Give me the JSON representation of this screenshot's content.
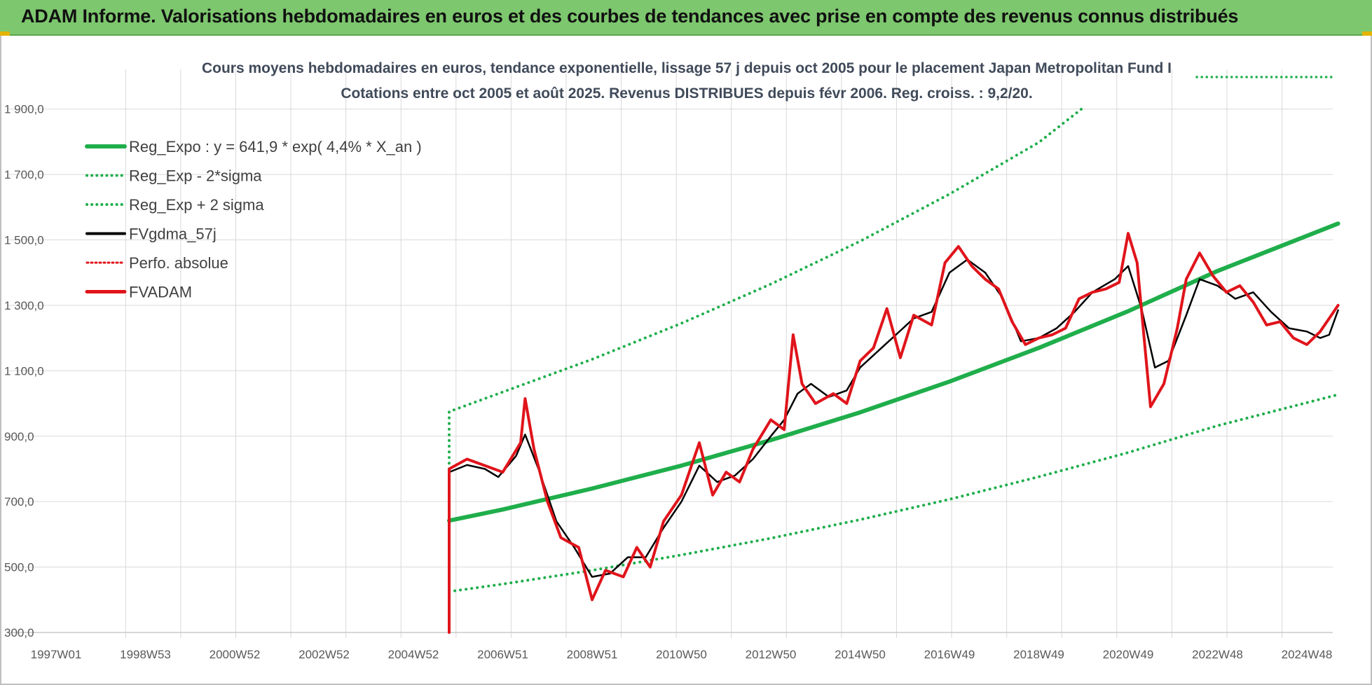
{
  "banner": {
    "title": "ADAM Informe. Valorisations hebdomadaires en euros et des courbes de tendances avec prise en compte des revenus connus distribués"
  },
  "colors": {
    "banner_bg": "#7dc76e",
    "reg_expo": "#1fae4b",
    "sigma": "#1fae4b",
    "fvgdma": "#000000",
    "perfo": "#e0141b",
    "fvadam": "#e0141b",
    "grid": "#d9d9d9"
  },
  "chart_data": {
    "type": "line",
    "title_line1": "Cours moyens hebdomadaires en euros, tendance exponentielle, lissage 57 j depuis oct 2005 pour le placement Japan Metropolitan Fund I",
    "title_line2": "Cotations entre oct 2005 et août 2025. Revenus DISTRIBUES depuis févr 2006. Reg. croiss. : 9,2/20.",
    "xlabel": "",
    "ylabel": "",
    "x_domain": [
      1997.0,
      2025.7
    ],
    "ylim": [
      300,
      2000
    ],
    "y_ticks": [
      300,
      500,
      700,
      900,
      1100,
      1300,
      1500,
      1700,
      1900
    ],
    "y_tick_labels": [
      "300,0",
      "500,0",
      "700,0",
      "900,0",
      "1 100,0",
      "1 300,0",
      "1 500,0",
      "1 700,0",
      "1 900,0"
    ],
    "x_ticks": [
      {
        "x": 1997.0,
        "label": "1997W01"
      },
      {
        "x": 1999.0,
        "label": "1998W53"
      },
      {
        "x": 2001.0,
        "label": "2000W52"
      },
      {
        "x": 2003.0,
        "label": "2002W52"
      },
      {
        "x": 2005.0,
        "label": "2004W52"
      },
      {
        "x": 2007.0,
        "label": "2006W51"
      },
      {
        "x": 2009.0,
        "label": "2008W51"
      },
      {
        "x": 2011.0,
        "label": "2010W50"
      },
      {
        "x": 2013.0,
        "label": "2012W50"
      },
      {
        "x": 2015.0,
        "label": "2014W50"
      },
      {
        "x": 2017.0,
        "label": "2016W49"
      },
      {
        "x": 2019.0,
        "label": "2018W49"
      },
      {
        "x": 2021.0,
        "label": "2020W49"
      },
      {
        "x": 2023.0,
        "label": "2022W48"
      },
      {
        "x": 2025.0,
        "label": "2024W48"
      }
    ],
    "grid": true,
    "legend_position": "top-left",
    "series": [
      {
        "name": "Reg_Expo : y = 641,9 * exp( 4,4% *  X_an )",
        "style": "solid-thick",
        "points": [
          [
            2005.8,
            642
          ],
          [
            2007,
            676
          ],
          [
            2009,
            740
          ],
          [
            2011,
            810
          ],
          [
            2013,
            888
          ],
          [
            2015,
            973
          ],
          [
            2017,
            1067
          ],
          [
            2019,
            1170
          ],
          [
            2021,
            1282
          ],
          [
            2023,
            1405
          ],
          [
            2025.7,
            1550
          ]
        ]
      },
      {
        "name": "Reg_Exp - 2*sigma",
        "style": "dotted",
        "points": [
          [
            2005.8,
            425
          ],
          [
            2007,
            448
          ],
          [
            2009,
            490
          ],
          [
            2011,
            537
          ],
          [
            2013,
            588
          ],
          [
            2015,
            645
          ],
          [
            2017,
            707
          ],
          [
            2019,
            776
          ],
          [
            2021,
            850
          ],
          [
            2023,
            932
          ],
          [
            2025.7,
            1027
          ]
        ]
      },
      {
        "name": "Reg_Exp + 2 sigma",
        "style": "dotted",
        "points": [
          [
            2005.8,
            800
          ],
          [
            2005.8,
            975
          ],
          [
            2007,
            1035
          ],
          [
            2009,
            1135
          ],
          [
            2011,
            1245
          ],
          [
            2013,
            1365
          ],
          [
            2015,
            1496
          ],
          [
            2017,
            1640
          ],
          [
            2019,
            1798
          ],
          [
            2020.0,
            1905
          ]
        ]
      },
      {
        "name": "FVgdma_57j",
        "style": "solid-thin",
        "points": [
          [
            2005.8,
            790
          ],
          [
            2006.2,
            812
          ],
          [
            2006.6,
            800
          ],
          [
            2006.9,
            775
          ],
          [
            2007.3,
            840
          ],
          [
            2007.5,
            905
          ],
          [
            2007.8,
            800
          ],
          [
            2008.2,
            640
          ],
          [
            2008.6,
            560
          ],
          [
            2009.0,
            470
          ],
          [
            2009.4,
            480
          ],
          [
            2009.8,
            530
          ],
          [
            2010.2,
            530
          ],
          [
            2010.6,
            620
          ],
          [
            2011.0,
            700
          ],
          [
            2011.4,
            810
          ],
          [
            2011.8,
            760
          ],
          [
            2012.2,
            780
          ],
          [
            2012.6,
            830
          ],
          [
            2013.0,
            900
          ],
          [
            2013.3,
            950
          ],
          [
            2013.6,
            1030
          ],
          [
            2013.9,
            1060
          ],
          [
            2014.3,
            1020
          ],
          [
            2014.7,
            1040
          ],
          [
            2015.0,
            1110
          ],
          [
            2015.4,
            1160
          ],
          [
            2015.8,
            1210
          ],
          [
            2016.2,
            1260
          ],
          [
            2016.6,
            1280
          ],
          [
            2017.0,
            1400
          ],
          [
            2017.4,
            1440
          ],
          [
            2017.8,
            1400
          ],
          [
            2018.2,
            1320
          ],
          [
            2018.6,
            1190
          ],
          [
            2019.0,
            1200
          ],
          [
            2019.4,
            1230
          ],
          [
            2019.8,
            1280
          ],
          [
            2020.2,
            1340
          ],
          [
            2020.7,
            1380
          ],
          [
            2021.0,
            1420
          ],
          [
            2021.3,
            1290
          ],
          [
            2021.6,
            1110
          ],
          [
            2021.9,
            1130
          ],
          [
            2022.3,
            1270
          ],
          [
            2022.6,
            1380
          ],
          [
            2023.0,
            1360
          ],
          [
            2023.4,
            1320
          ],
          [
            2023.8,
            1340
          ],
          [
            2024.2,
            1280
          ],
          [
            2024.6,
            1230
          ],
          [
            2025.0,
            1220
          ],
          [
            2025.3,
            1200
          ],
          [
            2025.5,
            1210
          ],
          [
            2025.7,
            1285
          ]
        ]
      },
      {
        "name": "Perfo. absolue",
        "style": "dotted",
        "points": [
          [
            2005.8,
            305
          ],
          [
            2005.8,
            800
          ],
          [
            2006.2,
            830
          ],
          [
            2006.6,
            810
          ],
          [
            2007.0,
            790
          ],
          [
            2007.4,
            880
          ],
          [
            2007.5,
            1015
          ],
          [
            2007.7,
            860
          ],
          [
            2008.0,
            700
          ],
          [
            2008.3,
            590
          ],
          [
            2008.7,
            560
          ],
          [
            2009.0,
            400
          ],
          [
            2009.3,
            490
          ],
          [
            2009.7,
            470
          ],
          [
            2010.0,
            560
          ],
          [
            2010.3,
            500
          ],
          [
            2010.6,
            640
          ],
          [
            2011.0,
            720
          ],
          [
            2011.4,
            880
          ],
          [
            2011.7,
            720
          ],
          [
            2012.0,
            790
          ],
          [
            2012.3,
            760
          ],
          [
            2012.6,
            860
          ],
          [
            2013.0,
            950
          ],
          [
            2013.3,
            920
          ],
          [
            2013.5,
            1210
          ],
          [
            2013.7,
            1060
          ],
          [
            2014.0,
            1000
          ],
          [
            2014.4,
            1030
          ],
          [
            2014.7,
            1000
          ],
          [
            2015.0,
            1130
          ],
          [
            2015.3,
            1170
          ],
          [
            2015.6,
            1290
          ],
          [
            2015.9,
            1140
          ],
          [
            2016.2,
            1270
          ],
          [
            2016.6,
            1240
          ],
          [
            2016.9,
            1430
          ],
          [
            2017.2,
            1480
          ],
          [
            2017.5,
            1420
          ],
          [
            2017.8,
            1380
          ],
          [
            2018.1,
            1350
          ],
          [
            2018.4,
            1250
          ],
          [
            2018.7,
            1180
          ],
          [
            2019.0,
            1200
          ],
          [
            2019.3,
            1210
          ],
          [
            2019.6,
            1230
          ],
          [
            2019.9,
            1320
          ],
          [
            2020.2,
            1340
          ],
          [
            2020.5,
            1350
          ],
          [
            2020.8,
            1370
          ],
          [
            2021.0,
            1520
          ],
          [
            2021.2,
            1430
          ],
          [
            2021.5,
            990
          ],
          [
            2021.8,
            1060
          ],
          [
            2022.1,
            1230
          ],
          [
            2022.3,
            1380
          ],
          [
            2022.6,
            1460
          ],
          [
            2022.9,
            1390
          ],
          [
            2023.2,
            1340
          ],
          [
            2023.5,
            1360
          ],
          [
            2023.8,
            1310
          ],
          [
            2024.1,
            1240
          ],
          [
            2024.4,
            1250
          ],
          [
            2024.7,
            1200
          ],
          [
            2025.0,
            1180
          ],
          [
            2025.3,
            1220
          ],
          [
            2025.5,
            1260
          ],
          [
            2025.7,
            1300
          ]
        ]
      },
      {
        "name": "FVADAM",
        "style": "solid-thick",
        "points": [
          [
            2005.8,
            300
          ],
          [
            2005.8,
            800
          ],
          [
            2006.2,
            830
          ],
          [
            2006.6,
            810
          ],
          [
            2007.0,
            790
          ],
          [
            2007.4,
            880
          ],
          [
            2007.5,
            1015
          ],
          [
            2007.7,
            860
          ],
          [
            2008.0,
            700
          ],
          [
            2008.3,
            590
          ],
          [
            2008.7,
            560
          ],
          [
            2009.0,
            400
          ],
          [
            2009.3,
            490
          ],
          [
            2009.7,
            470
          ],
          [
            2010.0,
            560
          ],
          [
            2010.3,
            500
          ],
          [
            2010.6,
            640
          ],
          [
            2011.0,
            720
          ],
          [
            2011.4,
            880
          ],
          [
            2011.7,
            720
          ],
          [
            2012.0,
            790
          ],
          [
            2012.3,
            760
          ],
          [
            2012.6,
            860
          ],
          [
            2013.0,
            950
          ],
          [
            2013.3,
            920
          ],
          [
            2013.5,
            1210
          ],
          [
            2013.7,
            1060
          ],
          [
            2014.0,
            1000
          ],
          [
            2014.4,
            1030
          ],
          [
            2014.7,
            1000
          ],
          [
            2015.0,
            1130
          ],
          [
            2015.3,
            1170
          ],
          [
            2015.6,
            1290
          ],
          [
            2015.9,
            1140
          ],
          [
            2016.2,
            1270
          ],
          [
            2016.6,
            1240
          ],
          [
            2016.9,
            1430
          ],
          [
            2017.2,
            1480
          ],
          [
            2017.5,
            1420
          ],
          [
            2017.8,
            1380
          ],
          [
            2018.1,
            1350
          ],
          [
            2018.4,
            1250
          ],
          [
            2018.7,
            1180
          ],
          [
            2019.0,
            1200
          ],
          [
            2019.3,
            1210
          ],
          [
            2019.6,
            1230
          ],
          [
            2019.9,
            1320
          ],
          [
            2020.2,
            1340
          ],
          [
            2020.5,
            1350
          ],
          [
            2020.8,
            1370
          ],
          [
            2021.0,
            1520
          ],
          [
            2021.2,
            1430
          ],
          [
            2021.5,
            990
          ],
          [
            2021.8,
            1060
          ],
          [
            2022.1,
            1230
          ],
          [
            2022.3,
            1380
          ],
          [
            2022.6,
            1460
          ],
          [
            2022.9,
            1390
          ],
          [
            2023.2,
            1340
          ],
          [
            2023.5,
            1360
          ],
          [
            2023.8,
            1310
          ],
          [
            2024.1,
            1240
          ],
          [
            2024.4,
            1250
          ],
          [
            2024.7,
            1200
          ],
          [
            2025.0,
            1180
          ],
          [
            2025.3,
            1220
          ],
          [
            2025.5,
            1260
          ],
          [
            2025.7,
            1300
          ]
        ]
      }
    ]
  }
}
